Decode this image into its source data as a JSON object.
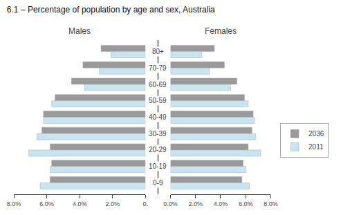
{
  "chart_data": [
    {
      "type": "bar",
      "orientation": "horizontal",
      "title": "6.1 – Percentage of population by age and sex, Australia",
      "subtitle": "Males",
      "categories": [
        "0-9",
        "10-19",
        "20-29",
        "30-39",
        "40-49",
        "50-59",
        "60-69",
        "70-79",
        "80+"
      ],
      "series": [
        {
          "name": "2036",
          "color": "#999999",
          "values": [
            5.8,
            5.7,
            5.8,
            6.3,
            6.2,
            5.5,
            4.5,
            3.8,
            2.7
          ]
        },
        {
          "name": "2011",
          "color": "#c8e4f0",
          "values": [
            6.4,
            5.8,
            7.1,
            6.6,
            6.2,
            5.7,
            3.7,
            2.8,
            2.1
          ]
        }
      ],
      "xlim": [
        8,
        0
      ],
      "xticks": [
        {
          "value": 8,
          "label": "8.0%"
        },
        {
          "value": 6,
          "label": "6.0%"
        },
        {
          "value": 4,
          "label": "4.0%"
        },
        {
          "value": 2,
          "label": "2.0%"
        },
        {
          "value": 0,
          "label": "0."
        }
      ],
      "grid": false,
      "legend": "right"
    },
    {
      "type": "bar",
      "orientation": "horizontal",
      "subtitle": "Females",
      "categories": [
        "0-9",
        "10-19",
        "20-29",
        "30-39",
        "40-49",
        "50-59",
        "60-69",
        "70-79",
        "80+"
      ],
      "series": [
        {
          "name": "2036",
          "color": "#999999",
          "values": [
            5.7,
            5.8,
            6.2,
            6.5,
            6.6,
            5.9,
            5.3,
            4.3,
            3.5
          ]
        },
        {
          "name": "2011",
          "color": "#c8e4f0",
          "values": [
            6.3,
            6.0,
            7.2,
            6.8,
            6.7,
            6.2,
            4.8,
            3.1,
            2.5
          ]
        }
      ],
      "xlim": [
        0,
        8
      ],
      "xticks": [
        {
          "value": 0,
          "label": "0.0%"
        },
        {
          "value": 2,
          "label": "2.0%"
        },
        {
          "value": 4,
          "label": "4.0%"
        },
        {
          "value": 6,
          "label": "6.0%"
        },
        {
          "value": 8,
          "label": "8.0%"
        }
      ],
      "grid": false,
      "legend": "right"
    }
  ]
}
